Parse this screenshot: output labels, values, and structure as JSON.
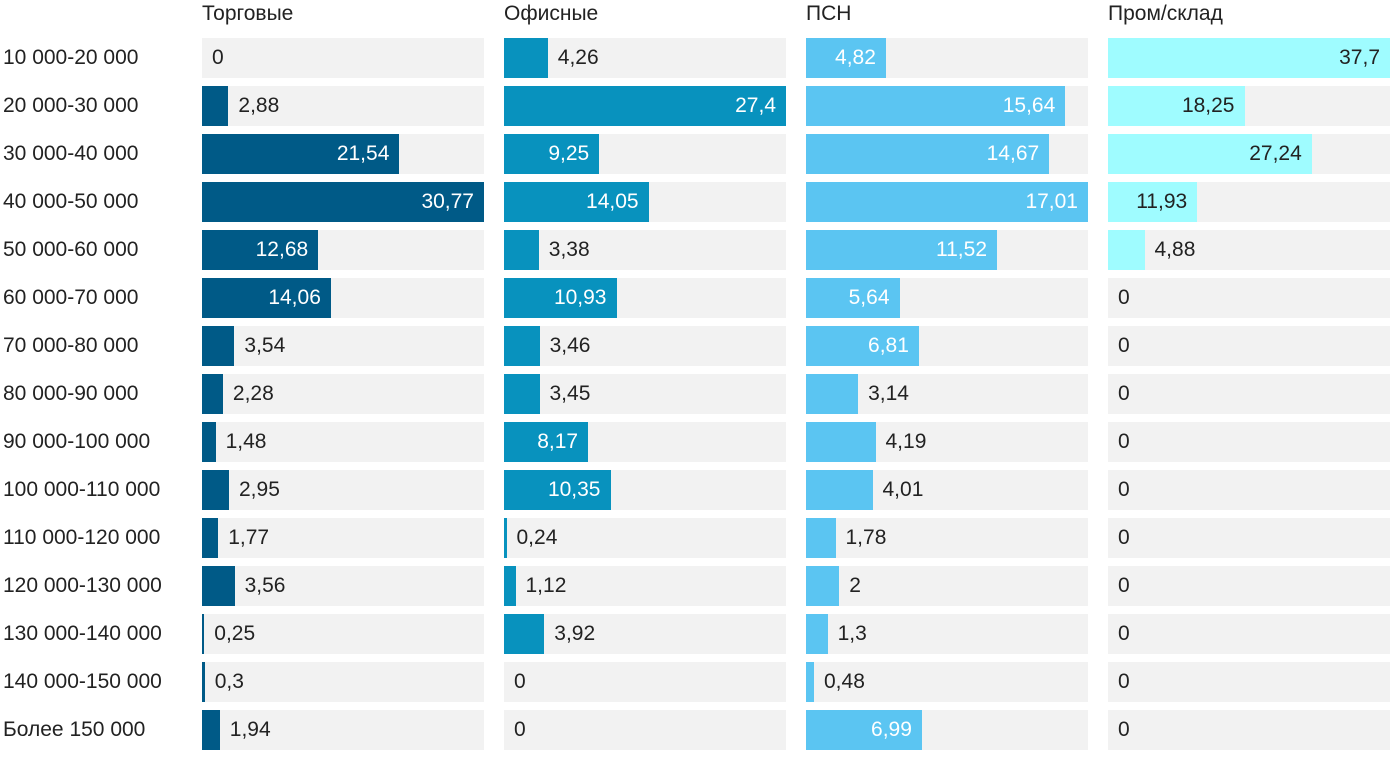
{
  "chart_data": {
    "type": "bar",
    "orientation": "horizontal",
    "layout": "small-multiples",
    "categories": [
      "10 000-20 000",
      "20 000-30 000",
      "30 000-40 000",
      "40 000-50 000",
      "50 000-60 000",
      "60 000-70 000",
      "70 000-80 000",
      "80 000-90 000",
      "90 000-100 000",
      "100 000-110 000",
      "110 000-120 000",
      "120 000-130 000",
      "130 000-140 000",
      "140 000-150 000",
      "Более 150 000"
    ],
    "series": [
      {
        "name": "Торговые",
        "color": "#005a87",
        "values": [
          0,
          2.88,
          21.54,
          30.77,
          12.68,
          14.06,
          3.54,
          2.28,
          1.48,
          2.95,
          1.77,
          3.56,
          0.25,
          0.3,
          1.94
        ],
        "labels": [
          "0",
          "2,88",
          "21,54",
          "30,77",
          "12,68",
          "14,06",
          "3,54",
          "2,28",
          "1,48",
          "2,95",
          "1,77",
          "3,56",
          "0,25",
          "0,3",
          "1,94"
        ]
      },
      {
        "name": "Офисные",
        "color": "#0892be",
        "values": [
          4.26,
          27.4,
          9.25,
          14.05,
          3.38,
          10.93,
          3.46,
          3.45,
          8.17,
          10.35,
          0.24,
          1.12,
          3.92,
          0,
          0
        ],
        "labels": [
          "4,26",
          "27,4",
          "9,25",
          "14,05",
          "3,38",
          "10,93",
          "3,46",
          "3,45",
          "8,17",
          "10,35",
          "0,24",
          "1,12",
          "3,92",
          "0",
          "0"
        ]
      },
      {
        "name": "ПСН",
        "color": "#5bc5f2",
        "values": [
          4.82,
          15.64,
          14.67,
          17.01,
          11.52,
          5.64,
          6.81,
          3.14,
          4.19,
          4.01,
          1.78,
          2,
          1.3,
          0.48,
          6.99
        ],
        "labels": [
          "4,82",
          "15,64",
          "14,67",
          "17,01",
          "11,52",
          "5,64",
          "6,81",
          "3,14",
          "4,19",
          "4,01",
          "1,78",
          "2",
          "1,3",
          "0,48",
          "6,99"
        ]
      },
      {
        "name": "Пром/склад",
        "color": "#9ffcff",
        "values": [
          37.7,
          18.25,
          27.24,
          11.93,
          4.88,
          0,
          0,
          0,
          0,
          0,
          0,
          0,
          0,
          0,
          0
        ],
        "labels": [
          "37,7",
          "18,25",
          "27,24",
          "11,93",
          "4,88",
          "0",
          "0",
          "0",
          "0",
          "0",
          "0",
          "0",
          "0",
          "0",
          "0"
        ]
      }
    ],
    "label_colors": {
      "inside_dark": "#ffffff",
      "inside_light": "#222222",
      "outside": "#222222"
    },
    "track_color": "#f2f2f2",
    "grid": false,
    "legend": "none"
  }
}
